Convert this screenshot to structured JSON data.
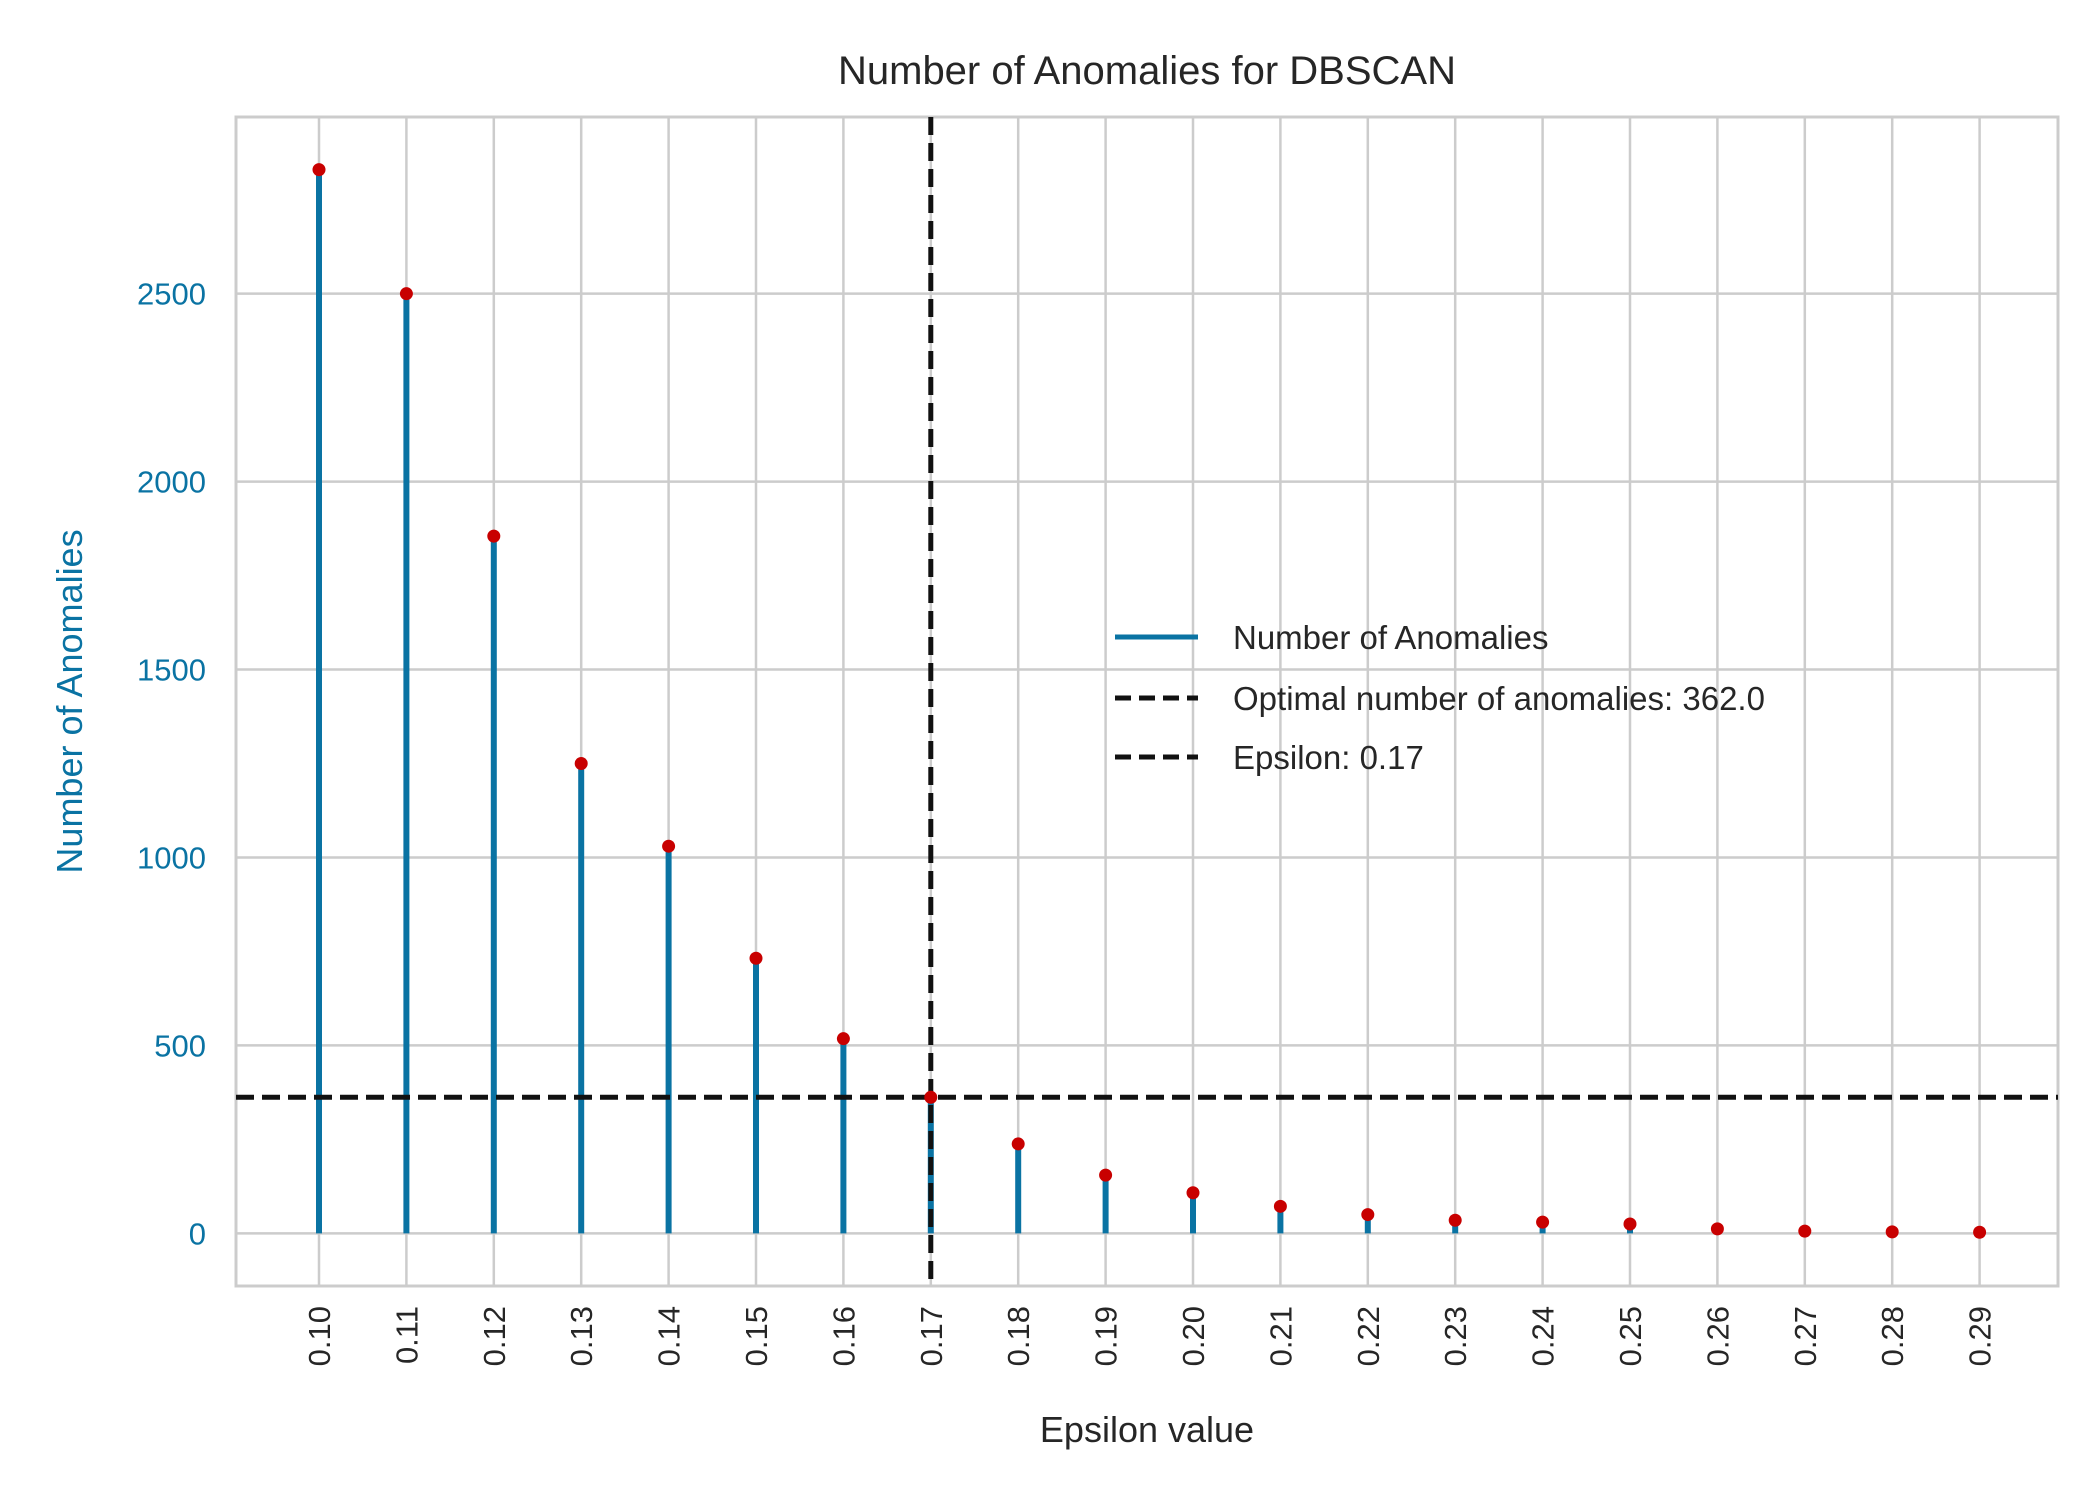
{
  "chart_data": {
    "type": "stem",
    "title": "Number of Anomalies for DBSCAN",
    "xlabel": "Epsilon value",
    "ylabel": "Number of Anomalies",
    "x": [
      "0.10",
      "0.11",
      "0.12",
      "0.13",
      "0.14",
      "0.15",
      "0.16",
      "0.17",
      "0.18",
      "0.19",
      "0.20",
      "0.21",
      "0.22",
      "0.23",
      "0.24",
      "0.25",
      "0.26",
      "0.27",
      "0.28",
      "0.29"
    ],
    "series": [
      {
        "name": "Number of Anomalies",
        "values": [
          2830,
          2500,
          1855,
          1250,
          1030,
          732,
          518,
          362,
          238,
          155,
          108,
          72,
          50,
          35,
          30,
          25,
          12,
          6,
          4,
          3
        ]
      }
    ],
    "yticks": [
      0,
      500,
      1000,
      1500,
      2000,
      2500
    ],
    "ylim": [
      -140,
      2970
    ],
    "reference_lines": [
      {
        "orientation": "horizontal",
        "value": 362,
        "label": "Optimal number of anomalies: 362.0"
      },
      {
        "orientation": "vertical",
        "value": "0.17",
        "label": "Epsilon: 0.17"
      }
    ],
    "grid": true,
    "legend": "center-right",
    "colors": {
      "stem": "#0a73a3",
      "marker": "#c80000",
      "reference": "#111111",
      "ylabel": "#0a73a3",
      "grid": "#cccccc"
    }
  }
}
